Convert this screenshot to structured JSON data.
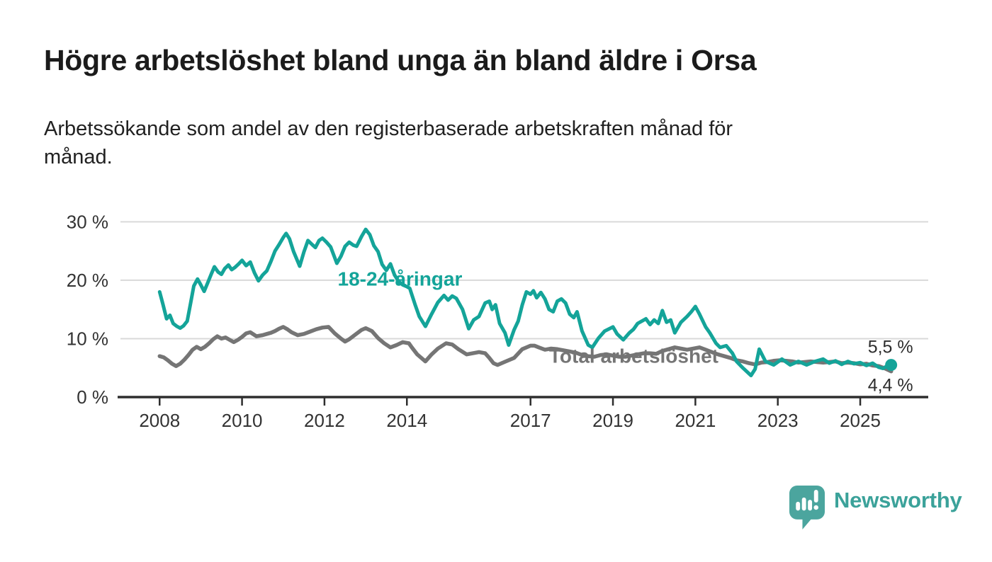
{
  "chart_data": {
    "type": "line",
    "title": "Högre arbetslöshet bland unga än bland äldre i Orsa",
    "subtitle_lines": [
      "Arbetssökande som andel av den registerbaserade arbetskraften månad för",
      "månad."
    ],
    "grid": "horizontal",
    "x_axis": {
      "lim": [
        2007.05,
        2026.65
      ],
      "ticks": [
        2008,
        2010,
        2012,
        2014,
        2017,
        2019,
        2021,
        2023,
        2025
      ]
    },
    "y_axis": {
      "lim": [
        0,
        32.1
      ],
      "ticks": [
        {
          "v": 0,
          "label": "0 %"
        },
        {
          "v": 10,
          "label": "10 %"
        },
        {
          "v": 20,
          "label": "20 %"
        },
        {
          "v": 30,
          "label": "30 %"
        }
      ]
    },
    "series": [
      {
        "name": "Total arbetslöshet",
        "color": "#757575",
        "stroke_width": 5.5,
        "label_at": [
          2017.45,
          5.9
        ],
        "end_label": "4,4 %",
        "end_label_side": "below",
        "end_dot": false,
        "points": [
          [
            2008,
            7
          ],
          [
            2008.1,
            6.8
          ],
          [
            2008.2,
            6.3
          ],
          [
            2008.3,
            5.7
          ],
          [
            2008.4,
            5.3
          ],
          [
            2008.5,
            5.7
          ],
          [
            2008.6,
            6.4
          ],
          [
            2008.7,
            7.2
          ],
          [
            2008.8,
            8.1
          ],
          [
            2008.9,
            8.6
          ],
          [
            2009,
            8.2
          ],
          [
            2009.1,
            8.6
          ],
          [
            2009.2,
            9.2
          ],
          [
            2009.3,
            9.9
          ],
          [
            2009.4,
            10.4
          ],
          [
            2009.5,
            10
          ],
          [
            2009.6,
            10.2
          ],
          [
            2009.7,
            9.8
          ],
          [
            2009.8,
            9.4
          ],
          [
            2009.9,
            9.8
          ],
          [
            2010,
            10.3
          ],
          [
            2010.1,
            10.9
          ],
          [
            2010.2,
            11.1
          ],
          [
            2010.35,
            10.4
          ],
          [
            2010.5,
            10.6
          ],
          [
            2010.6,
            10.8
          ],
          [
            2010.7,
            11
          ],
          [
            2010.8,
            11.3
          ],
          [
            2010.9,
            11.7
          ],
          [
            2011,
            12
          ],
          [
            2011.1,
            11.6
          ],
          [
            2011.2,
            11.1
          ],
          [
            2011.35,
            10.6
          ],
          [
            2011.5,
            10.8
          ],
          [
            2011.65,
            11.2
          ],
          [
            2011.8,
            11.6
          ],
          [
            2011.95,
            11.9
          ],
          [
            2012.1,
            12
          ],
          [
            2012.25,
            10.9
          ],
          [
            2012.4,
            10
          ],
          [
            2012.5,
            9.5
          ],
          [
            2012.6,
            9.9
          ],
          [
            2012.75,
            10.7
          ],
          [
            2012.9,
            11.5
          ],
          [
            2013,
            11.8
          ],
          [
            2013.15,
            11.3
          ],
          [
            2013.3,
            10.1
          ],
          [
            2013.45,
            9.2
          ],
          [
            2013.6,
            8.5
          ],
          [
            2013.75,
            8.9
          ],
          [
            2013.9,
            9.4
          ],
          [
            2014.05,
            9.2
          ],
          [
            2014.12,
            8.5
          ],
          [
            2014.25,
            7.3
          ],
          [
            2014.45,
            6.1
          ],
          [
            2014.6,
            7.3
          ],
          [
            2014.75,
            8.3
          ],
          [
            2014.95,
            9.2
          ],
          [
            2015.1,
            9
          ],
          [
            2015.25,
            8.2
          ],
          [
            2015.45,
            7.3
          ],
          [
            2015.6,
            7.5
          ],
          [
            2015.75,
            7.7
          ],
          [
            2015.9,
            7.5
          ],
          [
            2016,
            6.7
          ],
          [
            2016.1,
            5.8
          ],
          [
            2016.2,
            5.5
          ],
          [
            2016.4,
            6.1
          ],
          [
            2016.6,
            6.7
          ],
          [
            2016.8,
            8.2
          ],
          [
            2017,
            8.8
          ],
          [
            2017.1,
            8.8
          ],
          [
            2017.2,
            8.5
          ],
          [
            2017.35,
            8.1
          ],
          [
            2017.5,
            8.3
          ],
          [
            2017.65,
            8.2
          ],
          [
            2017.8,
            8
          ],
          [
            2017.95,
            7.8
          ],
          [
            2018.1,
            7.6
          ],
          [
            2018.25,
            7.2
          ],
          [
            2018.4,
            7
          ],
          [
            2018.55,
            6.9
          ],
          [
            2018.7,
            7.2
          ],
          [
            2018.85,
            7.3
          ],
          [
            2019,
            7.1
          ],
          [
            2019.15,
            6.9
          ],
          [
            2019.3,
            6.9
          ],
          [
            2019.45,
            7.1
          ],
          [
            2019.6,
            7.3
          ],
          [
            2019.75,
            7.5
          ],
          [
            2019.9,
            7.5
          ],
          [
            2020.05,
            7.4
          ],
          [
            2020.2,
            7.9
          ],
          [
            2020.35,
            8.2
          ],
          [
            2020.5,
            8.5
          ],
          [
            2020.65,
            8.3
          ],
          [
            2020.8,
            8.1
          ],
          [
            2020.95,
            8.3
          ],
          [
            2021.1,
            8.5
          ],
          [
            2021.25,
            8.1
          ],
          [
            2021.4,
            7.7
          ],
          [
            2021.55,
            7.3
          ],
          [
            2021.7,
            7
          ],
          [
            2021.85,
            6.7
          ],
          [
            2022,
            6.3
          ],
          [
            2022.15,
            6.1
          ],
          [
            2022.3,
            5.8
          ],
          [
            2022.45,
            5.6
          ],
          [
            2022.6,
            5.9
          ],
          [
            2022.75,
            6
          ],
          [
            2022.9,
            6.2
          ],
          [
            2023.05,
            6.3
          ],
          [
            2023.2,
            6.2
          ],
          [
            2023.35,
            6.1
          ],
          [
            2023.5,
            5.9
          ],
          [
            2023.65,
            6
          ],
          [
            2023.8,
            6.1
          ],
          [
            2023.95,
            6
          ],
          [
            2024.1,
            5.9
          ],
          [
            2024.25,
            6
          ],
          [
            2024.4,
            6.1
          ],
          [
            2024.55,
            5.8
          ],
          [
            2024.7,
            5.9
          ],
          [
            2024.85,
            5.8
          ],
          [
            2025,
            5.6
          ],
          [
            2025.15,
            5.7
          ],
          [
            2025.3,
            5.4
          ],
          [
            2025.45,
            5.3
          ],
          [
            2025.6,
            4.9
          ],
          [
            2025.75,
            4.4
          ]
        ]
      },
      {
        "name": "18-24-åringar",
        "color": "#14A499",
        "stroke_width": 5,
        "label_at": [
          2012.32,
          19.1
        ],
        "end_label": "5,5 %",
        "end_label_side": "above",
        "end_dot": true,
        "points": [
          [
            2008,
            18
          ],
          [
            2008.08,
            15.9
          ],
          [
            2008.17,
            13.4
          ],
          [
            2008.25,
            14
          ],
          [
            2008.33,
            12.6
          ],
          [
            2008.42,
            12.1
          ],
          [
            2008.5,
            11.8
          ],
          [
            2008.58,
            12.2
          ],
          [
            2008.67,
            13
          ],
          [
            2008.75,
            16
          ],
          [
            2008.83,
            19
          ],
          [
            2008.92,
            20.2
          ],
          [
            2009,
            19.2
          ],
          [
            2009.08,
            18.1
          ],
          [
            2009.17,
            19.6
          ],
          [
            2009.25,
            21
          ],
          [
            2009.33,
            22.3
          ],
          [
            2009.42,
            21.4
          ],
          [
            2009.5,
            21
          ],
          [
            2009.58,
            22
          ],
          [
            2009.67,
            22.6
          ],
          [
            2009.75,
            21.8
          ],
          [
            2009.83,
            22.2
          ],
          [
            2009.92,
            22.8
          ],
          [
            2010,
            23.4
          ],
          [
            2010.1,
            22.5
          ],
          [
            2010.2,
            23.1
          ],
          [
            2010.3,
            21.3
          ],
          [
            2010.4,
            19.9
          ],
          [
            2010.5,
            20.9
          ],
          [
            2010.6,
            21.6
          ],
          [
            2010.7,
            23.2
          ],
          [
            2010.8,
            25
          ],
          [
            2010.9,
            26.1
          ],
          [
            2011,
            27.3
          ],
          [
            2011.07,
            28
          ],
          [
            2011.15,
            27.1
          ],
          [
            2011.25,
            24.9
          ],
          [
            2011.4,
            22.4
          ],
          [
            2011.5,
            24.8
          ],
          [
            2011.6,
            26.8
          ],
          [
            2011.7,
            26.1
          ],
          [
            2011.78,
            25.6
          ],
          [
            2011.87,
            26.8
          ],
          [
            2011.95,
            27.2
          ],
          [
            2012.05,
            26.5
          ],
          [
            2012.15,
            25.7
          ],
          [
            2012.3,
            22.9
          ],
          [
            2012.4,
            24.1
          ],
          [
            2012.5,
            25.8
          ],
          [
            2012.6,
            26.5
          ],
          [
            2012.7,
            26
          ],
          [
            2012.78,
            25.8
          ],
          [
            2012.9,
            27.5
          ],
          [
            2013,
            28.7
          ],
          [
            2013.1,
            27.8
          ],
          [
            2013.2,
            25.9
          ],
          [
            2013.3,
            24.9
          ],
          [
            2013.4,
            22.7
          ],
          [
            2013.5,
            21.7
          ],
          [
            2013.6,
            22.8
          ],
          [
            2013.7,
            20.9
          ],
          [
            2013.8,
            19.8
          ],
          [
            2013.9,
            19.2
          ],
          [
            2014,
            18.9
          ],
          [
            2014.07,
            18.6
          ],
          [
            2014.2,
            15.8
          ],
          [
            2014.3,
            13.8
          ],
          [
            2014.45,
            12.1
          ],
          [
            2014.6,
            14.2
          ],
          [
            2014.75,
            16.2
          ],
          [
            2014.9,
            17.4
          ],
          [
            2015,
            16.6
          ],
          [
            2015.1,
            17.3
          ],
          [
            2015.2,
            16.9
          ],
          [
            2015.35,
            15
          ],
          [
            2015.5,
            11.7
          ],
          [
            2015.62,
            13.2
          ],
          [
            2015.75,
            13.8
          ],
          [
            2015.9,
            16.1
          ],
          [
            2016,
            16.4
          ],
          [
            2016.07,
            15
          ],
          [
            2016.15,
            15.8
          ],
          [
            2016.25,
            12.6
          ],
          [
            2016.38,
            11
          ],
          [
            2016.47,
            8.9
          ],
          [
            2016.6,
            11.5
          ],
          [
            2016.7,
            13
          ],
          [
            2016.8,
            15.8
          ],
          [
            2016.9,
            18
          ],
          [
            2017,
            17.6
          ],
          [
            2017.07,
            18.2
          ],
          [
            2017.15,
            17
          ],
          [
            2017.25,
            17.9
          ],
          [
            2017.35,
            16.8
          ],
          [
            2017.45,
            15
          ],
          [
            2017.55,
            14.6
          ],
          [
            2017.65,
            16.4
          ],
          [
            2017.75,
            16.8
          ],
          [
            2017.85,
            16.1
          ],
          [
            2017.95,
            14.2
          ],
          [
            2018.05,
            13.6
          ],
          [
            2018.13,
            14.6
          ],
          [
            2018.25,
            11.3
          ],
          [
            2018.4,
            8.9
          ],
          [
            2018.5,
            8.5
          ],
          [
            2018.65,
            10.1
          ],
          [
            2018.8,
            11.3
          ],
          [
            2019,
            12
          ],
          [
            2019.1,
            10.8
          ],
          [
            2019.25,
            9.8
          ],
          [
            2019.4,
            11
          ],
          [
            2019.5,
            11.6
          ],
          [
            2019.6,
            12.6
          ],
          [
            2019.7,
            13
          ],
          [
            2019.8,
            13.4
          ],
          [
            2019.9,
            12.4
          ],
          [
            2020,
            13.2
          ],
          [
            2020.1,
            12.6
          ],
          [
            2020.2,
            14.8
          ],
          [
            2020.3,
            12.8
          ],
          [
            2020.4,
            13.2
          ],
          [
            2020.5,
            11
          ],
          [
            2020.65,
            12.8
          ],
          [
            2020.8,
            13.8
          ],
          [
            2020.9,
            14.6
          ],
          [
            2021,
            15.5
          ],
          [
            2021.1,
            14.2
          ],
          [
            2021.25,
            12
          ],
          [
            2021.35,
            11
          ],
          [
            2021.5,
            9.2
          ],
          [
            2021.6,
            8.5
          ],
          [
            2021.75,
            8.8
          ],
          [
            2021.9,
            7.5
          ],
          [
            2022,
            6.1
          ],
          [
            2022.15,
            5
          ],
          [
            2022.35,
            3.7
          ],
          [
            2022.45,
            4.8
          ],
          [
            2022.55,
            8.2
          ],
          [
            2022.7,
            6.1
          ],
          [
            2022.9,
            5.5
          ],
          [
            2023.1,
            6.5
          ],
          [
            2023.3,
            5.5
          ],
          [
            2023.5,
            6.1
          ],
          [
            2023.7,
            5.5
          ],
          [
            2023.9,
            6.1
          ],
          [
            2024.1,
            6.5
          ],
          [
            2024.25,
            5.8
          ],
          [
            2024.4,
            6.2
          ],
          [
            2024.55,
            5.6
          ],
          [
            2024.7,
            6.1
          ],
          [
            2024.85,
            5.7
          ],
          [
            2025,
            5.9
          ],
          [
            2025.15,
            5.4
          ],
          [
            2025.3,
            5.8
          ],
          [
            2025.45,
            5.1
          ],
          [
            2025.55,
            4.9
          ],
          [
            2025.65,
            5.3
          ],
          [
            2025.75,
            5.5
          ]
        ]
      }
    ],
    "colors": {
      "grid": "#d9d9d9",
      "axis": "#2e2e2e",
      "tick_label": "#333333",
      "end_label": "#2d2d2d"
    }
  },
  "footer": {
    "brand": "Newsworthy",
    "brand_color": "#3BA29A",
    "logo_badge_color": "#4BA59E"
  }
}
